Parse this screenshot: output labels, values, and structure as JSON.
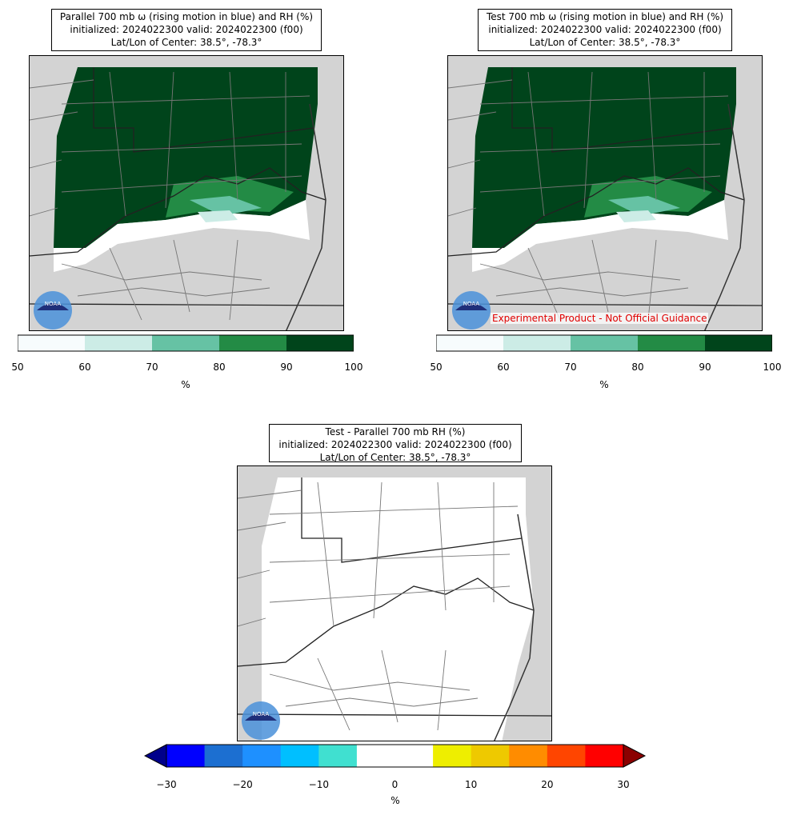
{
  "panels": [
    {
      "title_lines": [
        "Parallel 700 mb ω (rising motion in blue) and RH (%)",
        "initialized: 2024022300 valid: 2024022300 (f00)",
        "Lat/Lon of Center: 38.5°, -78.3°"
      ],
      "watermark": "",
      "colorbar": {
        "ticks": [
          "50",
          "60",
          "70",
          "80",
          "90",
          "100"
        ],
        "unit": "%",
        "colors": [
          "#f7fcfd",
          "#ccece6",
          "#66c2a4",
          "#238b45",
          "#00441b"
        ]
      }
    },
    {
      "title_lines": [
        "Test 700 mb ω (rising motion in blue) and RH (%)",
        "initialized: 2024022300 valid: 2024022300 (f00)",
        "Lat/Lon of Center: 38.5°, -78.3°"
      ],
      "watermark": "Experimental Product - Not Official Guidance",
      "colorbar": {
        "ticks": [
          "50",
          "60",
          "70",
          "80",
          "90",
          "100"
        ],
        "unit": "%",
        "colors": [
          "#f7fcfd",
          "#ccece6",
          "#66c2a4",
          "#238b45",
          "#00441b"
        ]
      }
    },
    {
      "title_lines": [
        "Test - Parallel 700 mb RH (%)",
        "initialized: 2024022300 valid: 2024022300 (f00)",
        "Lat/Lon of Center: 38.5°, -78.3°"
      ],
      "watermark": "",
      "colorbar": {
        "ticks": [
          "−30",
          "−20",
          "−10",
          "0",
          "10",
          "20",
          "30"
        ],
        "unit": "%",
        "colors": [
          "#0000ff",
          "#1c6fd1",
          "#1e90ff",
          "#00bfff",
          "#40e0d0",
          "#ffffff",
          "#ffffff",
          "#eeee00",
          "#eec900",
          "#ff8c00",
          "#ff4500",
          "#ff0000"
        ],
        "extend_low": "#00008b",
        "extend_high": "#8b0000"
      }
    }
  ],
  "chart_data": [
    {
      "type": "heatmap",
      "title": "Parallel 700 mb ω (rising motion in blue) and RH (%)",
      "subtitle": "initialized: 2024022300 valid: 2024022300 (f00)",
      "center": "38.5°, -78.3°",
      "colorbar_range": [
        50,
        100
      ],
      "colorbar_label": "%"
    },
    {
      "type": "heatmap",
      "title": "Test 700 mb ω (rising motion in blue) and RH (%)",
      "subtitle": "initialized: 2024022300 valid: 2024022300 (f00)",
      "center": "38.5°, -78.3°",
      "colorbar_range": [
        50,
        100
      ],
      "colorbar_label": "%"
    },
    {
      "type": "heatmap",
      "title": "Test - Parallel 700 mb RH (%)",
      "subtitle": "initialized: 2024022300 valid: 2024022300 (f00)",
      "center": "38.5°, -78.3°",
      "colorbar_range": [
        -30,
        30
      ],
      "colorbar_label": "%"
    }
  ],
  "logo": {
    "text": "NOAA"
  }
}
